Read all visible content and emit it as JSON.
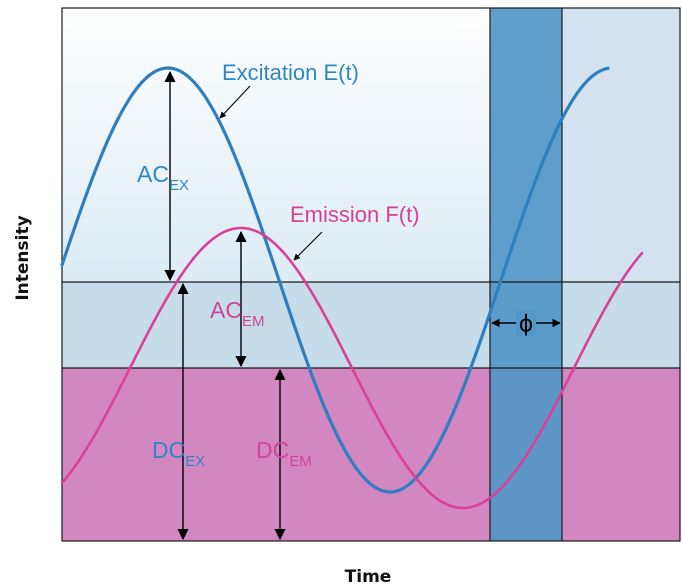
{
  "colors": {
    "excitation": "#2e7fc0",
    "emission": "#d9409a",
    "dc_band": "#d387c1",
    "ac_band": "#c9dfec",
    "upper_band": "#eef6fa",
    "phase_strip": "#5396c8",
    "right_panel": "#d3e2ee"
  },
  "labels": {
    "excitation": "Excitation E(t)",
    "emission": "Emission F(t)",
    "ac_ex_main": "AC",
    "ac_ex_sub": "EX",
    "ac_em_main": "AC",
    "ac_em_sub": "EM",
    "dc_ex_main": "DC",
    "dc_ex_sub": "EX",
    "dc_em_main": "DC",
    "dc_em_sub": "EM",
    "phase": "ϕ",
    "x_axis": "Time",
    "y_axis": "Intensity"
  }
}
